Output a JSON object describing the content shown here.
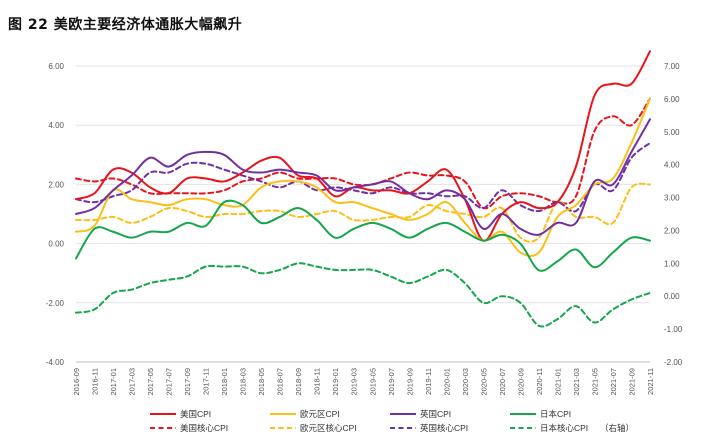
{
  "figure_title": "图 22 美欧主要经济体通胀大幅飙升",
  "chart_data": {
    "type": "line",
    "title": "图 22 美欧主要经济体通胀大幅飙升",
    "xlabel": "",
    "ylabel": "",
    "grid": true,
    "legend_position": "bottom",
    "left_axis": {
      "ylim": [
        -4,
        6
      ],
      "ticks": [
        "-4.00",
        "-2.00",
        "0.00",
        "2.00",
        "4.00",
        "6.00"
      ]
    },
    "right_axis": {
      "label_suffix": "（右轴）",
      "ylim": [
        -2,
        7
      ],
      "ticks": [
        "-2.00",
        "-1.00",
        "0.00",
        "1.00",
        "2.00",
        "3.00",
        "4.00",
        "5.00",
        "6.00",
        "7.00"
      ]
    },
    "x_tick_labels": [
      "2016-09",
      "2016-11",
      "2017-01",
      "2017-03",
      "2017-05",
      "2017-07",
      "2017-09",
      "2017-11",
      "2018-01",
      "2018-03",
      "2018-05",
      "2018-07",
      "2018-09",
      "2018-11",
      "2019-01",
      "2019-03",
      "2019-05",
      "2019-07",
      "2019-09",
      "2019-11",
      "2020-01",
      "2020-03",
      "2020-05",
      "2020-07",
      "2020-09",
      "2020-11",
      "2021-01",
      "2021-03",
      "2021-05",
      "2021-07",
      "2021-09",
      "2021-11"
    ],
    "x": [
      "2016-09",
      "2016-11",
      "2017-01",
      "2017-03",
      "2017-05",
      "2017-07",
      "2017-09",
      "2017-11",
      "2018-01",
      "2018-03",
      "2018-05",
      "2018-07",
      "2018-09",
      "2018-11",
      "2019-01",
      "2019-03",
      "2019-05",
      "2019-07",
      "2019-09",
      "2019-11",
      "2020-01",
      "2020-03",
      "2020-05",
      "2020-07",
      "2020-09",
      "2020-11",
      "2021-01",
      "2021-03",
      "2021-05",
      "2021-07",
      "2021-09",
      "2021-11"
    ],
    "series": [
      {
        "name": "美国CPI",
        "axis": "left",
        "color": "#e8141b",
        "dash": "solid",
        "values": [
          1.5,
          1.7,
          2.5,
          2.4,
          1.9,
          1.7,
          2.2,
          2.2,
          2.1,
          2.4,
          2.8,
          2.9,
          2.3,
          2.2,
          1.6,
          1.9,
          1.8,
          1.8,
          1.7,
          2.1,
          2.5,
          1.5,
          0.1,
          1.0,
          1.4,
          1.2,
          1.4,
          2.6,
          5.0,
          5.4,
          5.4,
          6.5
        ]
      },
      {
        "name": "欧元区CPI",
        "axis": "left",
        "color": "#fbbf18",
        "dash": "solid",
        "values": [
          0.4,
          0.6,
          1.8,
          1.5,
          1.4,
          1.3,
          1.5,
          1.5,
          1.3,
          1.3,
          1.9,
          2.1,
          2.1,
          1.9,
          1.4,
          1.4,
          1.2,
          1.0,
          0.8,
          1.0,
          1.4,
          0.7,
          0.1,
          0.4,
          -0.3,
          -0.3,
          0.9,
          1.3,
          2.0,
          2.2,
          3.4,
          4.9
        ]
      },
      {
        "name": "英国CPI",
        "axis": "left",
        "color": "#7030a0",
        "dash": "solid",
        "values": [
          1.0,
          1.2,
          1.8,
          2.3,
          2.9,
          2.6,
          3.0,
          3.1,
          3.0,
          2.5,
          2.4,
          2.5,
          2.4,
          2.3,
          1.8,
          1.9,
          2.0,
          2.1,
          1.7,
          1.5,
          1.8,
          1.5,
          0.5,
          1.0,
          0.5,
          0.3,
          0.7,
          0.7,
          2.1,
          2.0,
          3.1,
          4.2
        ]
      },
      {
        "name": "日本CPI",
        "axis": "left",
        "color": "#16a64b",
        "dash": "solid",
        "values": [
          -0.5,
          0.5,
          0.4,
          0.2,
          0.4,
          0.4,
          0.7,
          0.6,
          1.4,
          1.3,
          0.7,
          0.9,
          1.2,
          0.8,
          0.2,
          0.5,
          0.7,
          0.5,
          0.2,
          0.5,
          0.7,
          0.4,
          0.1,
          0.3,
          0.0,
          -0.9,
          -0.6,
          -0.2,
          -0.8,
          -0.3,
          0.2,
          0.1
        ]
      },
      {
        "name": "美国核心CPI",
        "axis": "left",
        "color": "#e8141b",
        "dash": "dash",
        "values": [
          2.2,
          2.1,
          2.2,
          2.0,
          1.7,
          1.7,
          1.7,
          1.7,
          1.8,
          2.1,
          2.2,
          2.4,
          2.2,
          2.2,
          2.2,
          2.0,
          2.0,
          2.2,
          2.4,
          2.3,
          2.3,
          2.1,
          1.2,
          1.6,
          1.7,
          1.6,
          1.4,
          1.6,
          3.8,
          4.3,
          4.0,
          4.9
        ]
      },
      {
        "name": "欧元区核心CPI",
        "axis": "left",
        "color": "#fbbf18",
        "dash": "dash",
        "values": [
          0.8,
          0.8,
          0.9,
          0.7,
          0.9,
          1.2,
          1.1,
          0.9,
          1.0,
          1.0,
          1.1,
          1.1,
          0.9,
          1.0,
          1.1,
          0.8,
          0.8,
          0.9,
          0.9,
          1.3,
          1.1,
          1.0,
          0.9,
          1.2,
          0.2,
          0.2,
          1.4,
          0.9,
          0.9,
          0.7,
          1.9,
          2.0
        ]
      },
      {
        "name": "英国核心CPI",
        "axis": "left",
        "color": "#7030a0",
        "dash": "dash",
        "values": [
          1.5,
          1.4,
          1.6,
          1.8,
          2.4,
          2.4,
          2.7,
          2.7,
          2.5,
          2.3,
          2.1,
          1.9,
          2.1,
          1.8,
          1.9,
          1.8,
          1.7,
          1.9,
          1.7,
          1.7,
          1.6,
          1.6,
          1.2,
          1.8,
          1.3,
          1.1,
          1.4,
          1.1,
          2.0,
          1.8,
          2.9,
          3.4
        ]
      },
      {
        "name": "日本核心CPI",
        "axis": "right",
        "color": "#16a64b",
        "dash": "dash",
        "values": [
          -0.5,
          -0.4,
          0.1,
          0.2,
          0.4,
          0.5,
          0.6,
          0.9,
          0.9,
          0.9,
          0.7,
          0.8,
          1.0,
          0.9,
          0.8,
          0.8,
          0.8,
          0.6,
          0.4,
          0.6,
          0.8,
          0.4,
          -0.2,
          0.0,
          -0.2,
          -0.9,
          -0.7,
          -0.3,
          -0.8,
          -0.4,
          -0.1,
          0.1
        ]
      }
    ]
  }
}
